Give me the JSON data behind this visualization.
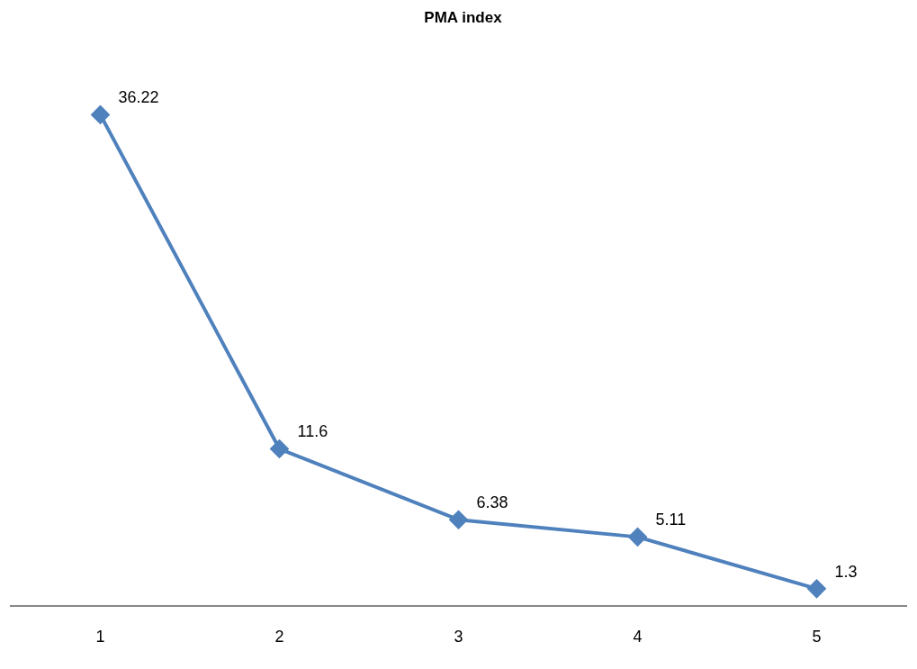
{
  "chart_data": {
    "type": "line",
    "title": "PMA index",
    "categories": [
      "1",
      "2",
      "3",
      "4",
      "5"
    ],
    "series": [
      {
        "color": "#4f81bd",
        "values": [
          36.22,
          11.6,
          6.38,
          5.11,
          1.3
        ]
      }
    ],
    "data_labels": true,
    "marker": "diamond",
    "line_style": "solid",
    "grid": false,
    "legend": false,
    "tick_labels": "x"
  }
}
